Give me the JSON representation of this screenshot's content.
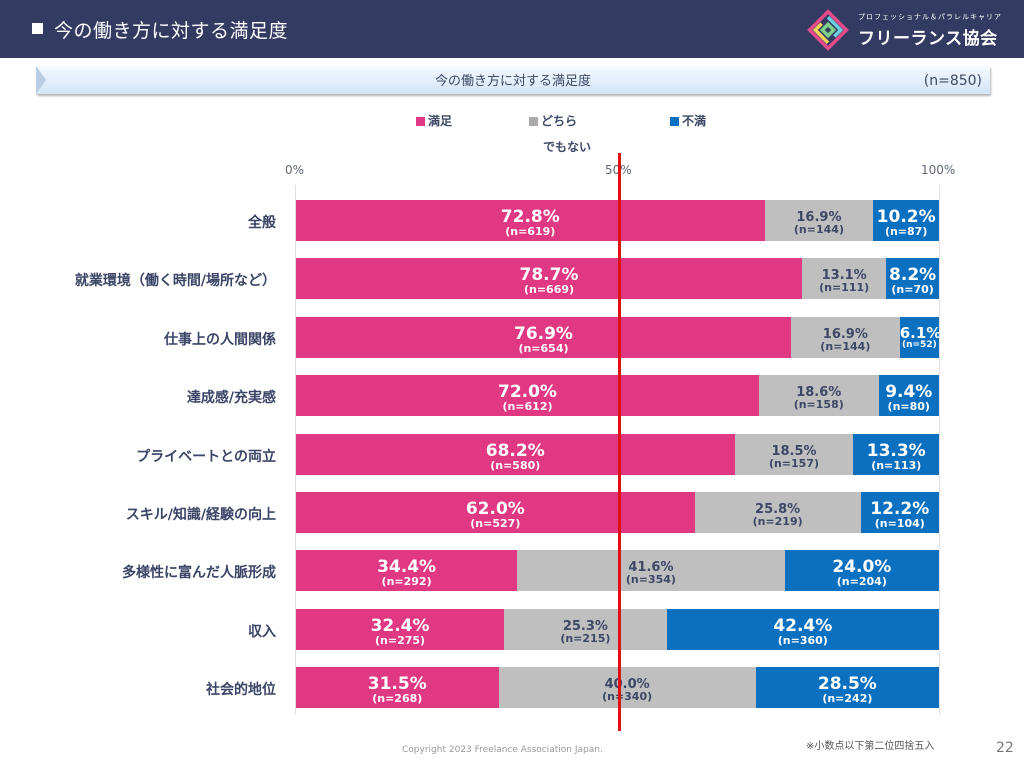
{
  "header": {
    "title": "今の働き方に対する満足度"
  },
  "logo": {
    "subtitle": "プロフェッショナル＆パラレルキャリア",
    "name": "フリーランス協会"
  },
  "banner": {
    "title": "今の働き方に対する満足度",
    "sample": "(n=850)"
  },
  "colors": {
    "satisfied": "#e03883",
    "neutral": "#bfbfbf",
    "dissatisfied": "#0a70bf",
    "reference_line": "#e01010",
    "header_bg": "#333b62"
  },
  "chart_data": {
    "type": "bar",
    "orientation": "horizontal",
    "stacked": true,
    "normalized": true,
    "title": "今の働き方に対する満足度",
    "xlabel": "",
    "ylabel": "",
    "xlim": [
      0,
      100
    ],
    "x_ticks": [
      "0%",
      "50%",
      "100%"
    ],
    "reference_line": 50,
    "legend": {
      "position": "top",
      "entries": [
        "満足",
        "どちらでもない",
        "不満"
      ]
    },
    "legend_labels": {
      "satisfied": "満足",
      "neutral_line1": "どちら",
      "neutral_line2": "でもない",
      "dissatisfied": "不満"
    },
    "categories": [
      "全般",
      "就業環境（働く時間/場所など）",
      "仕事上の人間関係",
      "達成感/充実感",
      "プライベートとの両立",
      "スキル/知識/経験の向上",
      "多様性に富んだ人脈形成",
      "収入",
      "社会的地位"
    ],
    "series": [
      {
        "name": "満足",
        "values": [
          72.8,
          78.7,
          76.9,
          72.0,
          68.2,
          62.0,
          34.4,
          32.4,
          31.5
        ],
        "n": [
          619,
          669,
          654,
          612,
          580,
          527,
          292,
          275,
          268
        ]
      },
      {
        "name": "どちらでもない",
        "values": [
          16.9,
          13.1,
          16.9,
          18.6,
          18.5,
          25.8,
          41.6,
          25.3,
          40.0
        ],
        "n": [
          144,
          111,
          144,
          158,
          157,
          219,
          354,
          215,
          340
        ]
      },
      {
        "name": "不満",
        "values": [
          10.2,
          8.2,
          6.1,
          9.4,
          13.3,
          12.2,
          24.0,
          42.4,
          28.5
        ],
        "n": [
          87,
          70,
          52,
          80,
          113,
          104,
          204,
          360,
          242
        ]
      }
    ]
  },
  "footer": {
    "copyright": "Copyright 2023 Freelance Association Japan.",
    "note": "※小数点以下第二位四捨五入",
    "page": "22"
  }
}
